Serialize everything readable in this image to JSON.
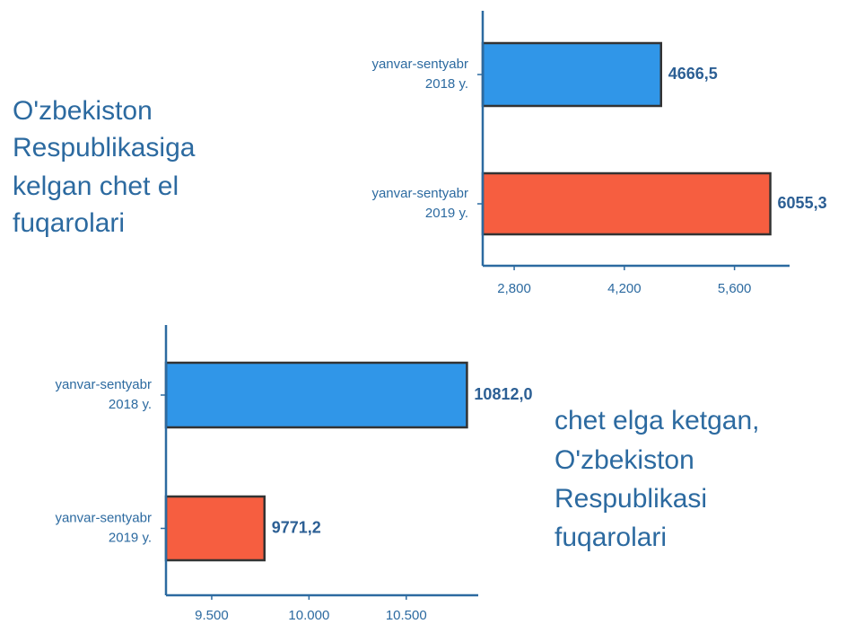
{
  "chart_data": [
    {
      "type": "bar",
      "orientation": "horizontal",
      "title": [
        "O'zbekiston",
        "Respublikasiga",
        "kelgan chet el",
        "fuqarolari"
      ],
      "categories": [
        [
          "yanvar-sentyabr",
          "2018 y."
        ],
        [
          "yanvar-sentyabr",
          "2019 y."
        ]
      ],
      "values": [
        4666.5,
        6055.3
      ],
      "value_labels": [
        "4666,5",
        "6055,3"
      ],
      "colors": [
        "#3096e8",
        "#f65e40"
      ],
      "xlim": [
        2400,
        6300
      ],
      "xticks": [
        {
          "value": 2800,
          "label": "2,800"
        },
        {
          "value": 4200,
          "label": "4,200"
        },
        {
          "value": 5600,
          "label": "5,600"
        }
      ]
    },
    {
      "type": "bar",
      "orientation": "horizontal",
      "title": [
        "chet elga ketgan,",
        "O'zbekiston",
        "Respublikasi",
        "fuqarolari"
      ],
      "categories": [
        [
          "yanvar-sentyabr",
          "2018 y."
        ],
        [
          "yanvar-sentyabr",
          "2019 y."
        ]
      ],
      "values": [
        10812.0,
        9771.2
      ],
      "value_labels": [
        "10812,0",
        "9771,2"
      ],
      "colors": [
        "#3096e8",
        "#f65e40"
      ],
      "xlim": [
        9265,
        10870
      ],
      "xticks": [
        {
          "value": 9500,
          "label": "9.500"
        },
        {
          "value": 10000,
          "label": "10.000"
        },
        {
          "value": 10500,
          "label": "10.500"
        }
      ]
    }
  ]
}
